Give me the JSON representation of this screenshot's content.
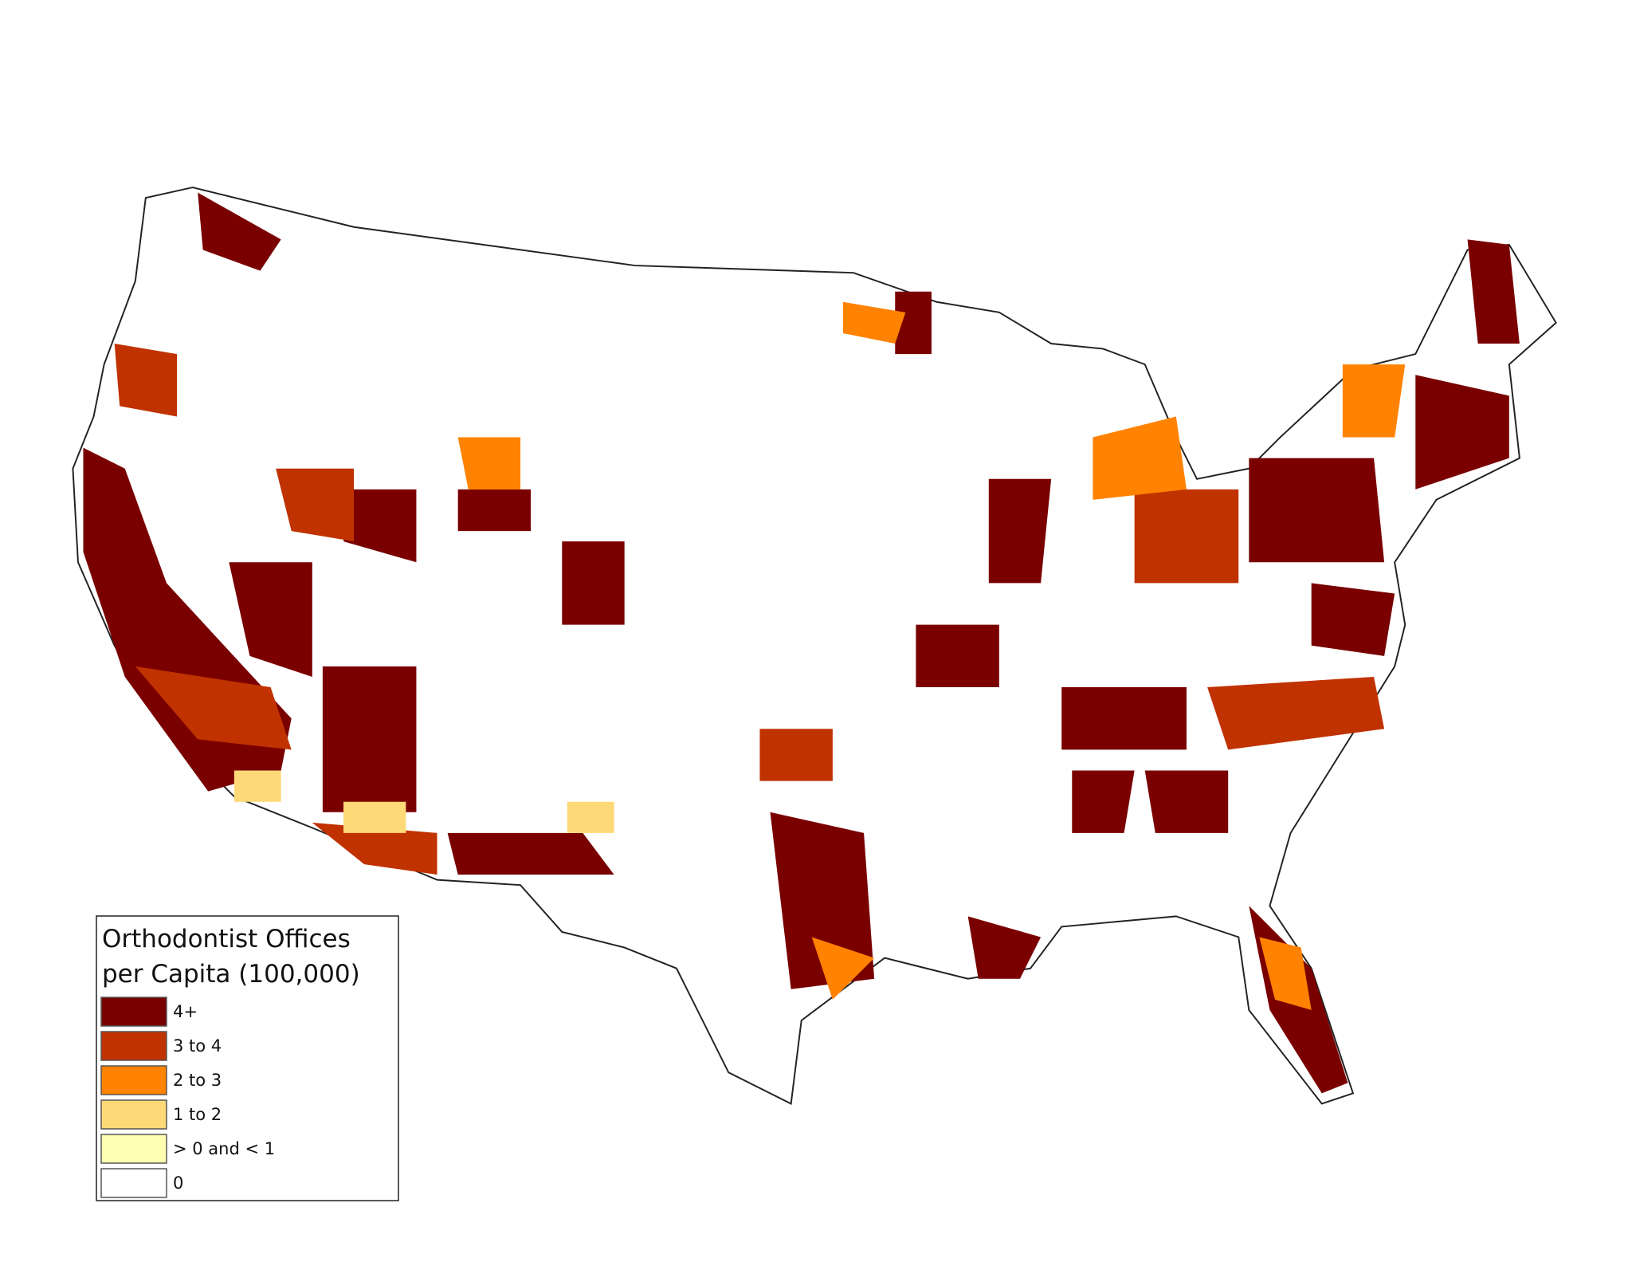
{
  "legend": {
    "title": [
      "Orthodontist Offices",
      "per Capita (100,000)"
    ],
    "items": [
      {
        "label": "4+",
        "color": "#7a0000"
      },
      {
        "label": "3  to  4",
        "color": "#c03200"
      },
      {
        "label": "2  to  3",
        "color": "#ff8200"
      },
      {
        "label": "1  to  2",
        "color": "#ffd978"
      },
      {
        "label": "> 0 and < 1",
        "color": "#ffffb2"
      },
      {
        "label": "0",
        "color": "#ffffff"
      }
    ]
  }
}
